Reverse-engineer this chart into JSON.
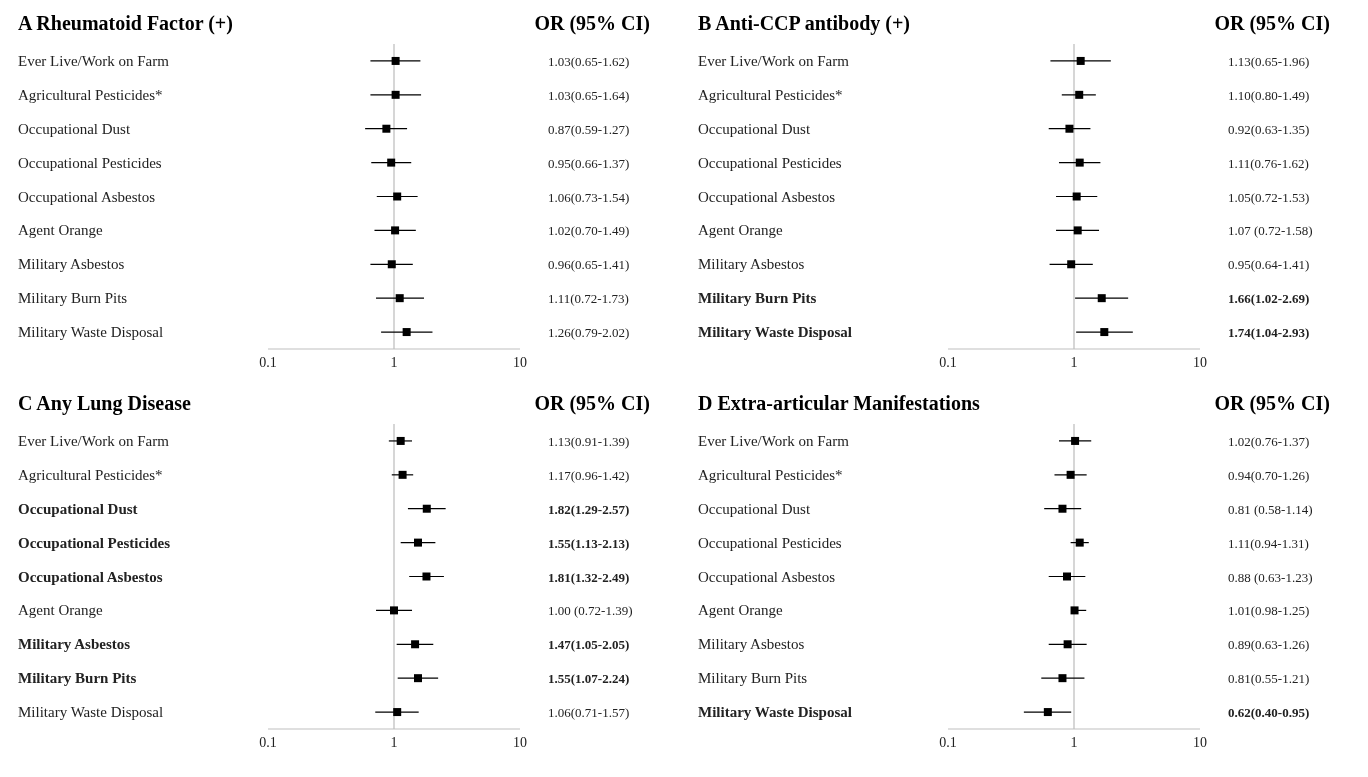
{
  "chart_data": [
    {
      "type": "scatter",
      "orientation": "horizontal",
      "title": "A Rheumatoid Factor (+)",
      "annotations": [
        "OR (95% CI)"
      ],
      "categories": [
        "Ever Live/Work on Farm",
        "Agricultural Pesticides*",
        "Occupational Dust",
        "Occupational Pesticides",
        "Occupational Asbestos",
        "Agent Orange",
        "Military Asbestos",
        "Military Burn Pits",
        "Military Waste Disposal"
      ],
      "values": [
        1.03,
        1.03,
        0.87,
        0.95,
        1.06,
        1.02,
        0.96,
        1.11,
        1.26
      ],
      "errors": [
        [
          0.65,
          1.62
        ],
        [
          0.65,
          1.64
        ],
        [
          0.59,
          1.27
        ],
        [
          0.66,
          1.37
        ],
        [
          0.73,
          1.54
        ],
        [
          0.7,
          1.49
        ],
        [
          0.65,
          1.41
        ],
        [
          0.72,
          1.73
        ],
        [
          0.79,
          2.02
        ]
      ],
      "value_labels": [
        "1.03(0.65-1.62)",
        "1.03(0.65-1.64)",
        "0.87(0.59-1.27)",
        "0.95(0.66-1.37)",
        "1.06(0.73-1.54)",
        "1.02(0.70-1.49)",
        "0.96(0.65-1.41)",
        "1.11(0.72-1.73)",
        "1.26(0.79-2.02)"
      ],
      "color": "#000000",
      "marker": "square",
      "log": "x",
      "xlim": [
        0.1,
        10
      ],
      "xticks": [
        0.1,
        1,
        10
      ],
      "ref_lines": [
        {
          "axis": "x",
          "value": 1,
          "color": "#c8c8c8"
        }
      ]
    },
    {
      "type": "scatter",
      "orientation": "horizontal",
      "title": "B Anti-CCP antibody (+)",
      "annotations": [
        "OR (95% CI)"
      ],
      "categories": [
        "Ever Live/Work on Farm",
        "Agricultural Pesticides*",
        "Occupational Dust",
        "Occupational Pesticides",
        "Occupational Asbestos",
        "Agent Orange",
        "Military Asbestos",
        "Military Burn Pits",
        "Military Waste Disposal"
      ],
      "values": [
        1.13,
        1.1,
        0.92,
        1.11,
        1.05,
        1.07,
        0.95,
        1.66,
        1.74
      ],
      "errors": [
        [
          0.65,
          1.96
        ],
        [
          0.8,
          1.49
        ],
        [
          0.63,
          1.35
        ],
        [
          0.76,
          1.62
        ],
        [
          0.72,
          1.53
        ],
        [
          0.72,
          1.58
        ],
        [
          0.64,
          1.41
        ],
        [
          1.02,
          2.69
        ],
        [
          1.04,
          2.93
        ]
      ],
      "value_labels": [
        "1.13(0.65-1.96)",
        "1.10(0.80-1.49)",
        "0.92(0.63-1.35)",
        "1.11(0.76-1.62)",
        "1.05(0.72-1.53)",
        "1.07 (0.72-1.58)",
        "0.95(0.64-1.41)",
        "1.66(1.02-2.69)",
        "1.74(1.04-2.93)"
      ],
      "color": "#000000",
      "marker": "square",
      "log": "x",
      "xlim": [
        0.1,
        10
      ],
      "xticks": [
        0.1,
        1,
        10
      ],
      "ref_lines": [
        {
          "axis": "x",
          "value": 1,
          "color": "#c8c8c8"
        }
      ]
    },
    {
      "type": "scatter",
      "orientation": "horizontal",
      "title": "C Any Lung Disease",
      "annotations": [
        "OR (95% CI)"
      ],
      "categories": [
        "Ever Live/Work on Farm",
        "Agricultural Pesticides*",
        "Occupational Dust",
        "Occupational Pesticides",
        "Occupational Asbestos",
        "Agent Orange",
        "Military Asbestos",
        "Military Burn Pits",
        "Military Waste Disposal"
      ],
      "values": [
        1.13,
        1.17,
        1.82,
        1.55,
        1.81,
        1.0,
        1.47,
        1.55,
        1.06
      ],
      "errors": [
        [
          0.91,
          1.39
        ],
        [
          0.96,
          1.42
        ],
        [
          1.29,
          2.57
        ],
        [
          1.13,
          2.13
        ],
        [
          1.32,
          2.49
        ],
        [
          0.72,
          1.39
        ],
        [
          1.05,
          2.05
        ],
        [
          1.07,
          2.24
        ],
        [
          0.71,
          1.57
        ]
      ],
      "value_labels": [
        "1.13(0.91-1.39)",
        "1.17(0.96-1.42)",
        "1.82(1.29-2.57)",
        "1.55(1.13-2.13)",
        "1.81(1.32-2.49)",
        "1.00 (0.72-1.39)",
        "1.47(1.05-2.05)",
        "1.55(1.07-2.24)",
        "1.06(0.71-1.57)"
      ],
      "color": "#000000",
      "marker": "square",
      "log": "x",
      "xlim": [
        0.1,
        10
      ],
      "xticks": [
        0.1,
        1,
        10
      ],
      "ref_lines": [
        {
          "axis": "x",
          "value": 1,
          "color": "#c8c8c8"
        }
      ]
    },
    {
      "type": "scatter",
      "orientation": "horizontal",
      "title": "D Extra-articular Manifestations",
      "annotations": [
        "OR (95% CI)"
      ],
      "categories": [
        "Ever Live/Work on Farm",
        "Agricultural Pesticides*",
        "Occupational Dust",
        "Occupational Pesticides",
        "Occupational Asbestos",
        "Agent Orange",
        "Military Asbestos",
        "Military Burn Pits",
        "Military Waste Disposal"
      ],
      "values": [
        1.02,
        0.94,
        0.81,
        1.11,
        0.88,
        1.01,
        0.89,
        0.81,
        0.62
      ],
      "errors": [
        [
          0.76,
          1.37
        ],
        [
          0.7,
          1.26
        ],
        [
          0.58,
          1.14
        ],
        [
          0.94,
          1.31
        ],
        [
          0.63,
          1.23
        ],
        [
          0.98,
          1.25
        ],
        [
          0.63,
          1.26
        ],
        [
          0.55,
          1.21
        ],
        [
          0.4,
          0.95
        ]
      ],
      "value_labels": [
        "1.02(0.76-1.37)",
        "0.94(0.70-1.26)",
        "0.81 (0.58-1.14)",
        "1.11(0.94-1.31)",
        "0.88 (0.63-1.23)",
        "1.01(0.98-1.25)",
        "0.89(0.63-1.26)",
        "0.81(0.55-1.21)",
        "0.62(0.40-0.95)"
      ],
      "color": "#000000",
      "marker": "square",
      "log": "x",
      "xlim": [
        0.1,
        10
      ],
      "xticks": [
        0.1,
        1,
        10
      ],
      "ref_lines": [
        {
          "axis": "x",
          "value": 1,
          "color": "#c8c8c8"
        }
      ]
    }
  ]
}
